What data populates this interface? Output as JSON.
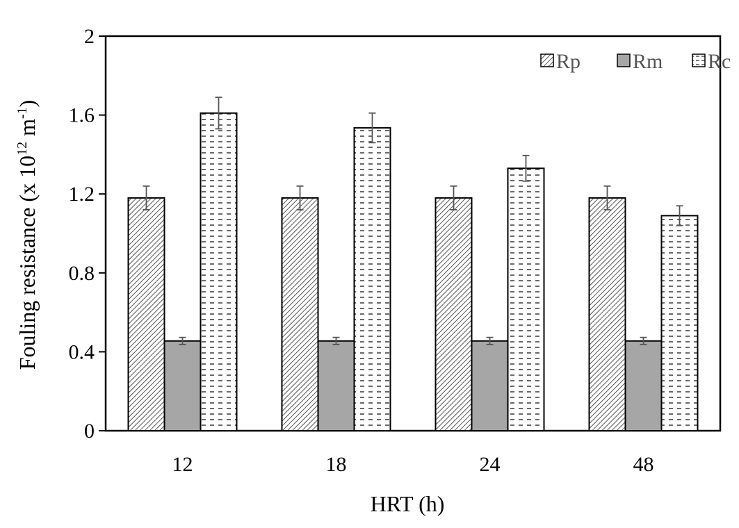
{
  "chart_data": {
    "type": "bar",
    "categories": [
      "12",
      "18",
      "24",
      "48"
    ],
    "series": [
      {
        "name": "Rp",
        "values": [
          1.18,
          1.18,
          1.18,
          1.18
        ],
        "errors": [
          0.06,
          0.06,
          0.06,
          0.06
        ],
        "pattern": "diagonal-hatch",
        "color": "#ffffff",
        "stroke": "#000000"
      },
      {
        "name": "Rm",
        "values": [
          0.455,
          0.455,
          0.455,
          0.455
        ],
        "errors": [
          0.018,
          0.018,
          0.018,
          0.018
        ],
        "pattern": "solid",
        "color": "#a6a6a6",
        "stroke": "#000000"
      },
      {
        "name": "Rc",
        "values": [
          1.61,
          1.535,
          1.33,
          1.09
        ],
        "errors": [
          0.08,
          0.075,
          0.065,
          0.05
        ],
        "pattern": "dashed-horizontal",
        "color": "#ffffff",
        "stroke": "#000000"
      }
    ],
    "xlabel": "HRT (h)",
    "ylabel_main": "Fouling resistance (x 10",
    "ylabel_sup1": "12",
    "ylabel_mid": " m",
    "ylabel_sup2": "-1",
    "ylabel_end": ")",
    "ylim": [
      0,
      2
    ],
    "yticks": [
      0,
      0.4,
      0.8,
      1.2,
      1.6,
      2
    ],
    "ytick_labels": [
      "0",
      "0.4",
      "0.8",
      "1.2",
      "1.6",
      "2"
    ],
    "grid": false,
    "legend_position": "top-right"
  }
}
